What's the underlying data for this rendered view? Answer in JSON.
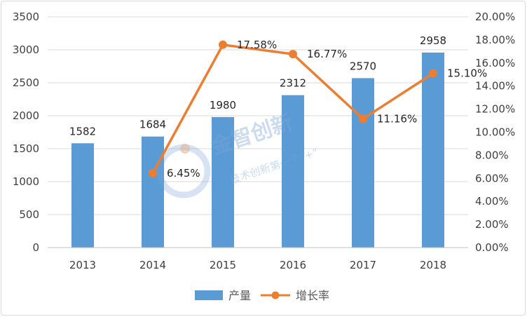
{
  "chart_data": {
    "type": "bar",
    "categories": [
      "2013",
      "2014",
      "2015",
      "2016",
      "2017",
      "2018"
    ],
    "series": [
      {
        "name": "产量",
        "type": "bar",
        "axis": "left",
        "values": [
          1582,
          1684,
          1980,
          2312,
          2570,
          2958
        ],
        "labels": [
          "1582",
          "1684",
          "1980",
          "2312",
          "2570",
          "2958"
        ]
      },
      {
        "name": "增长率",
        "type": "line",
        "axis": "right",
        "values": [
          null,
          6.45,
          17.58,
          16.77,
          11.16,
          15.1
        ],
        "labels": [
          "",
          "6.45%",
          "17.58%",
          "16.77%",
          "11.16%",
          "15.10%"
        ]
      }
    ],
    "ylim": [
      0,
      3500
    ],
    "y_ticks": [
      "0",
      "500",
      "1000",
      "1500",
      "2000",
      "2500",
      "3000",
      "3500"
    ],
    "y2lim": [
      0,
      20
    ],
    "y2_ticks": [
      "0.00%",
      "2.00%",
      "4.00%",
      "6.00%",
      "8.00%",
      "10.00%",
      "12.00%",
      "14.00%",
      "16.00%",
      "18.00%",
      "20.00%"
    ],
    "title": "",
    "xlabel": "",
    "ylabel": "",
    "grid": true,
    "legend": "bottom",
    "colors": {
      "bar": "#5b9bd5",
      "line": "#ed7d31",
      "grid": "#d9d9d9"
    }
  },
  "watermark": {
    "title": "金智创新",
    "subtitle": "技术创新第一个\"+\""
  }
}
